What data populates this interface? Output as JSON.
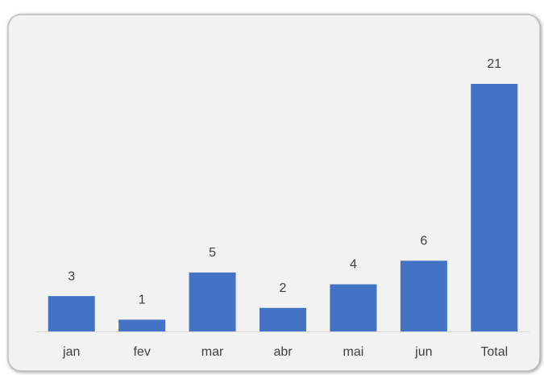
{
  "chart_data": {
    "type": "bar",
    "categories": [
      "jan",
      "fev",
      "mar",
      "abr",
      "mai",
      "jun",
      "Total"
    ],
    "values": [
      3,
      1,
      5,
      2,
      4,
      6,
      21
    ],
    "color": "#4472c4"
  }
}
